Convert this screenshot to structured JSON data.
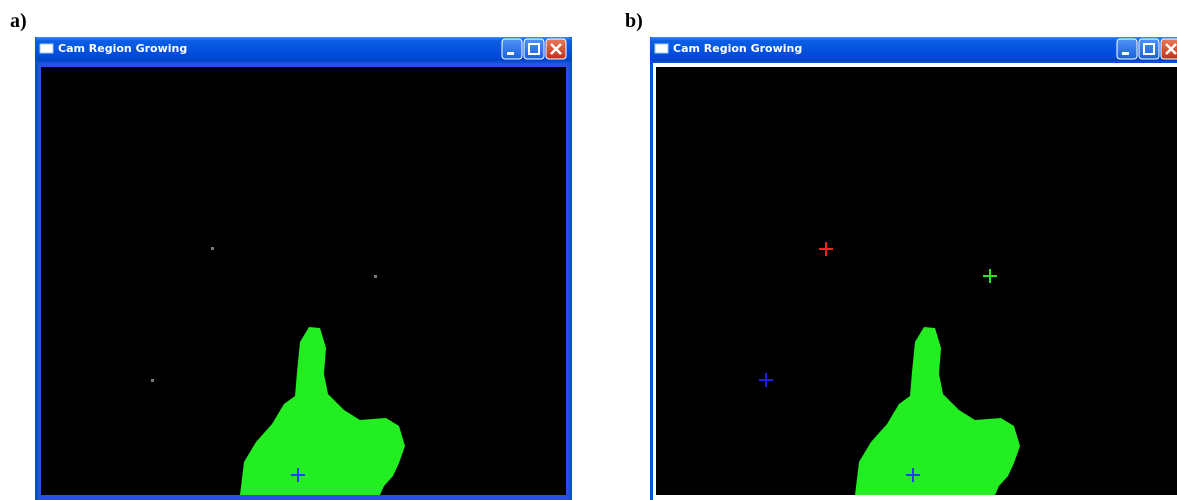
{
  "panels": [
    {
      "label": "a)",
      "window_title": "Cam Region Growing"
    },
    {
      "label": "b)",
      "window_title": "Cam Region Growing"
    }
  ]
}
